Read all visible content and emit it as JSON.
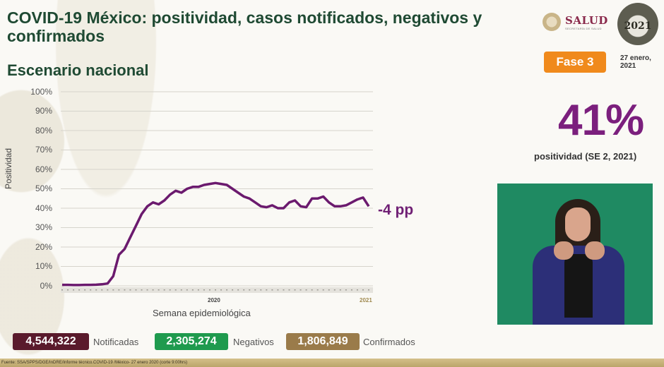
{
  "header": {
    "title": "COVID-19 México: positividad, casos notificados, negativos y confirmados",
    "subtitle": "Escenario nacional",
    "logo_text": "SALUD",
    "logo_subtext": "SECRETARÍA DE SALUD",
    "badge_year": "2021",
    "phase_label": "Fase 3",
    "date": "27 enero,",
    "date_year": "2021"
  },
  "kpi": {
    "value": "41%",
    "label": "positividad (SE 2, 2021)",
    "delta": "-4 pp"
  },
  "legend": {
    "notificadas": {
      "value": "4,544,322",
      "label": "Notificadas",
      "color": "#5a1a2c"
    },
    "negativos": {
      "value": "2,305,274",
      "label": "Negativos",
      "color": "#1f9a4e"
    },
    "confirmados": {
      "value": "1,806,849",
      "label": "Confirmados",
      "color": "#9a7b4a"
    }
  },
  "footer": {
    "source": "Fuente: SSA/SPPS/DGE/InDRE/Informe técnico.COVID-19 /México- 27 enero 2020 (corte 9:00hrs)"
  },
  "colors": {
    "title": "#1f4a33",
    "line": "#6b1a6e",
    "phase": "#f08a1c",
    "kpi": "#7b1f7d"
  },
  "chart_data": {
    "type": "line",
    "title": "Escenario nacional",
    "xlabel": "Semana epidemiológica",
    "ylabel": "Positividad",
    "ylim": [
      0,
      100
    ],
    "yticks": [
      "0%",
      "10%",
      "20%",
      "30%",
      "40%",
      "50%",
      "60%",
      "70%",
      "80%",
      "90%",
      "100%"
    ],
    "year_labels": [
      "2020",
      "2021"
    ],
    "grid": true,
    "legend": null,
    "annotation": "-4 pp",
    "x": [
      1,
      2,
      3,
      4,
      5,
      6,
      7,
      8,
      9,
      10,
      11,
      12,
      13,
      14,
      15,
      16,
      17,
      18,
      19,
      20,
      21,
      22,
      23,
      24,
      25,
      26,
      27,
      28,
      29,
      30,
      31,
      32,
      33,
      34,
      35,
      36,
      37,
      38,
      39,
      40,
      41,
      42,
      43,
      44,
      45,
      46,
      47,
      48,
      49,
      50,
      51,
      52,
      53,
      1,
      2
    ],
    "series": [
      {
        "name": "Positividad",
        "values": [
          0.5,
          0.5,
          0.4,
          0.4,
          0.5,
          0.5,
          0.6,
          0.8,
          1.2,
          5,
          16,
          19,
          25,
          31,
          37,
          41,
          43,
          42,
          44,
          47,
          49,
          48,
          50,
          51,
          51,
          52,
          52.5,
          53,
          52.5,
          52,
          50,
          48,
          46,
          45,
          43,
          41,
          40.5,
          41.5,
          40,
          40,
          43,
          44,
          41,
          40.5,
          45,
          45,
          46,
          43,
          41,
          41,
          41.5,
          43,
          44.5,
          45.5,
          41
        ]
      }
    ]
  }
}
